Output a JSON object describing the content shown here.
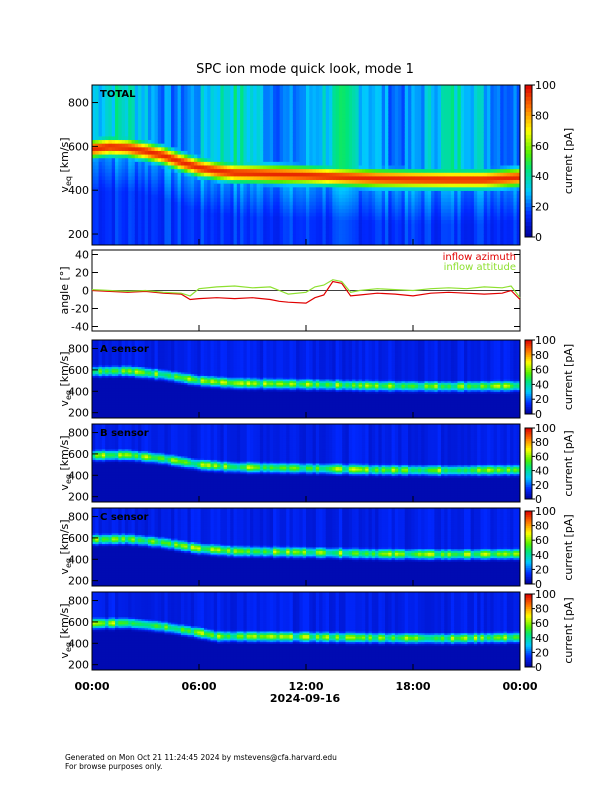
{
  "title": "SPC ion mode quick look, mode 1",
  "date_label": "2024-09-16",
  "footer": {
    "line1": "Generated on Mon Oct 21 11:24:45 2024 by mstevens@cfa.harvard.edu",
    "line2": "For browse purposes only."
  },
  "colors": {
    "azimuth": "#e00000",
    "attitude": "#8ee030",
    "axis": "#000000"
  },
  "chart_data": [
    {
      "type": "heatmap",
      "panel_label": "TOTAL",
      "ylabel": "v",
      "ylabel_sub": "eq",
      "ylabel_unit": "[km/s]",
      "ylim": [
        150,
        880
      ],
      "yticks": [
        200,
        400,
        600,
        800
      ],
      "x_ticks": [
        "00:00",
        "06:00",
        "12:00",
        "18:00",
        "00:00"
      ],
      "xlim_hours": [
        0,
        24
      ],
      "colorbar": {
        "label": "current [pA]",
        "range": [
          0,
          100
        ],
        "ticks": [
          0,
          20,
          40,
          60,
          80,
          100
        ],
        "colormap": "rainbow"
      },
      "peak_track_kms": [
        [
          0,
          590
        ],
        [
          1,
          600
        ],
        [
          2,
          595
        ],
        [
          3,
          580
        ],
        [
          4,
          560
        ],
        [
          5,
          530
        ],
        [
          6,
          505
        ],
        [
          7,
          490
        ],
        [
          8,
          480
        ],
        [
          9,
          478
        ],
        [
          10,
          475
        ],
        [
          12,
          470
        ],
        [
          14,
          462
        ],
        [
          16,
          455
        ],
        [
          18,
          452
        ],
        [
          20,
          450
        ],
        [
          22,
          450
        ],
        [
          24,
          460
        ]
      ]
    },
    {
      "type": "line",
      "ylabel": "angle [°]",
      "ylim": [
        -45,
        45
      ],
      "yticks": [
        -40,
        -20,
        0,
        20,
        40
      ],
      "x_ticks": [
        "00:00",
        "06:00",
        "12:00",
        "18:00",
        "00:00"
      ],
      "xlim_hours": [
        0,
        24
      ],
      "legend_placement": "top-right",
      "series": [
        {
          "name": "inflow azimuth",
          "color": "#e00000",
          "x": [
            0,
            1,
            2,
            3,
            4,
            5,
            5.5,
            6,
            7,
            8,
            9,
            10,
            10.5,
            11,
            12,
            12.5,
            13,
            13.5,
            14,
            14.5,
            15,
            16,
            17,
            18,
            19,
            20,
            21,
            22,
            23,
            23.5,
            24
          ],
          "y": [
            0,
            -1,
            -2,
            -1,
            -3,
            -4,
            -10,
            -9,
            -8,
            -9,
            -8,
            -10,
            -12,
            -13,
            -14,
            -8,
            -5,
            10,
            8,
            -6,
            -5,
            -3,
            -4,
            -6,
            -3,
            -2,
            -3,
            -4,
            -3,
            0,
            -10
          ]
        },
        {
          "name": "inflow attitude",
          "color": "#8ee030",
          "x": [
            0,
            1,
            2,
            3,
            4,
            5,
            5.5,
            6,
            7,
            8,
            9,
            10,
            10.5,
            11,
            12,
            12.5,
            13,
            13.5,
            14,
            14.5,
            15,
            16,
            17,
            18,
            19,
            20,
            21,
            22,
            23,
            23.5,
            24
          ],
          "y": [
            1,
            0,
            -1,
            0,
            -2,
            -3,
            -6,
            2,
            4,
            5,
            3,
            4,
            0,
            -4,
            -2,
            4,
            6,
            12,
            10,
            -2,
            0,
            2,
            1,
            0,
            2,
            3,
            2,
            4,
            3,
            5,
            -8
          ]
        }
      ]
    },
    {
      "type": "heatmap",
      "panel_label": "A sensor",
      "ylabel": "v",
      "ylabel_sub": "eq",
      "ylabel_unit": "[km/s]",
      "ylim": [
        150,
        880
      ],
      "yticks": [
        200,
        400,
        600,
        800
      ],
      "xlim_hours": [
        0,
        24
      ],
      "colorbar": {
        "label": "current [pA]",
        "range": [
          0,
          100
        ],
        "ticks": [
          0,
          20,
          40,
          60,
          80,
          100
        ],
        "colormap": "rainbow"
      },
      "peak_track_kms": [
        [
          0,
          590
        ],
        [
          2,
          595
        ],
        [
          4,
          560
        ],
        [
          6,
          505
        ],
        [
          8,
          480
        ],
        [
          12,
          470
        ],
        [
          16,
          455
        ],
        [
          20,
          450
        ],
        [
          24,
          455
        ]
      ]
    },
    {
      "type": "heatmap",
      "panel_label": "B sensor",
      "ylabel": "v",
      "ylabel_sub": "eq",
      "ylabel_unit": "[km/s]",
      "ylim": [
        150,
        880
      ],
      "yticks": [
        200,
        400,
        600,
        800
      ],
      "xlim_hours": [
        0,
        24
      ],
      "colorbar": {
        "label": "current [pA]",
        "range": [
          0,
          100
        ],
        "ticks": [
          0,
          20,
          40,
          60,
          80,
          100
        ],
        "colormap": "rainbow"
      },
      "peak_track_kms": [
        [
          0,
          590
        ],
        [
          2,
          595
        ],
        [
          4,
          560
        ],
        [
          6,
          505
        ],
        [
          8,
          480
        ],
        [
          12,
          470
        ],
        [
          16,
          455
        ],
        [
          20,
          450
        ],
        [
          24,
          455
        ]
      ]
    },
    {
      "type": "heatmap",
      "panel_label": "C sensor",
      "ylabel": "v",
      "ylabel_sub": "eq",
      "ylabel_unit": "[km/s]",
      "ylim": [
        150,
        880
      ],
      "yticks": [
        200,
        400,
        600,
        800
      ],
      "xlim_hours": [
        0,
        24
      ],
      "colorbar": {
        "label": "current [pA]",
        "range": [
          0,
          100
        ],
        "ticks": [
          0,
          20,
          40,
          60,
          80,
          100
        ],
        "colormap": "rainbow"
      },
      "peak_track_kms": [
        [
          0,
          590
        ],
        [
          2,
          595
        ],
        [
          4,
          560
        ],
        [
          6,
          505
        ],
        [
          8,
          480
        ],
        [
          12,
          470
        ],
        [
          16,
          455
        ],
        [
          20,
          450
        ],
        [
          24,
          455
        ]
      ]
    },
    {
      "type": "heatmap",
      "panel_label": "",
      "ylabel": "v",
      "ylabel_sub": "eq",
      "ylabel_unit": "[km/s]",
      "ylim": [
        150,
        880
      ],
      "yticks": [
        200,
        400,
        600,
        800
      ],
      "xlim_hours": [
        0,
        24
      ],
      "colorbar": {
        "label": "current [pA]",
        "range": [
          0,
          100
        ],
        "ticks": [
          0,
          20,
          40,
          60,
          80,
          100
        ],
        "colormap": "rainbow"
      },
      "peak_track_kms": [
        [
          0,
          590
        ],
        [
          2,
          595
        ],
        [
          4,
          560
        ],
        [
          6,
          505
        ],
        [
          7,
          470
        ],
        [
          8,
          470
        ],
        [
          12,
          465
        ],
        [
          16,
          455
        ],
        [
          20,
          450
        ],
        [
          24,
          460
        ]
      ]
    }
  ]
}
